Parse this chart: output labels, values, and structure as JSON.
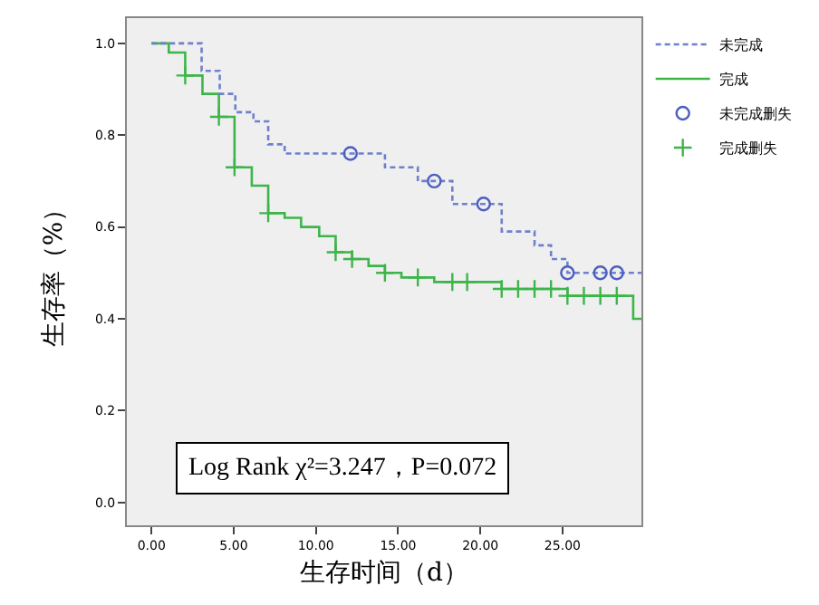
{
  "chart_data": {
    "type": "step",
    "xlabel": "生存时间（d）",
    "ylabel": "生存率（%）",
    "xlim": [
      -1.5,
      29.8
    ],
    "ylim": [
      -0.05,
      1.055
    ],
    "xticks": [
      {
        "value": 0,
        "label": "0.00"
      },
      {
        "value": 5,
        "label": "5.00"
      },
      {
        "value": 10,
        "label": "10.00"
      },
      {
        "value": 15,
        "label": "15.00"
      },
      {
        "value": 20,
        "label": "20.00"
      },
      {
        "value": 25,
        "label": "25.00"
      }
    ],
    "yticks": [
      {
        "value": 0,
        "label": "0.0"
      },
      {
        "value": 0.2,
        "label": "0.2"
      },
      {
        "value": 0.4,
        "label": "0.4"
      },
      {
        "value": 0.6,
        "label": "0.6"
      },
      {
        "value": 0.8,
        "label": "0.8"
      },
      {
        "value": 1,
        "label": "1.0"
      }
    ],
    "grid": false,
    "legend": "top right",
    "annotations": [
      "Log Rank χ²=3.247，P=0.072"
    ],
    "series": [
      {
        "name": "未完成",
        "type": "step",
        "color": "#6f80cc",
        "line_style": "dashed",
        "x": [
          0,
          3.05,
          4.15,
          5.1,
          6.2,
          7.1,
          8.1,
          14.2,
          16.2,
          18.3,
          21.3,
          23.3,
          24.3,
          25.3,
          29.8
        ],
        "values": [
          1,
          0.94,
          0.89,
          0.85,
          0.83,
          0.78,
          0.76,
          0.73,
          0.7,
          0.65,
          0.59,
          0.56,
          0.53,
          0.5,
          0.5
        ]
      },
      {
        "name": "完成",
        "type": "step",
        "color": "#3db54a",
        "line_style": "solid",
        "x": [
          0,
          1.05,
          2.05,
          3.1,
          4.1,
          5.05,
          6.1,
          7.1,
          8.1,
          9.1,
          10.2,
          11.2,
          12.2,
          13.2,
          14.2,
          15.2,
          17.2,
          21.3,
          25.3,
          29.3,
          29.8
        ],
        "values": [
          1,
          0.98,
          0.93,
          0.89,
          0.84,
          0.73,
          0.69,
          0.63,
          0.62,
          0.6,
          0.58,
          0.545,
          0.53,
          0.515,
          0.5,
          0.49,
          0.48,
          0.465,
          0.45,
          0.4,
          0.4
        ]
      },
      {
        "name": "未完成删失",
        "type": "scatter",
        "color": "#4a5fc0",
        "marker": "circle",
        "x": [
          12.1,
          17.2,
          20.2,
          25.3,
          27.3,
          28.3
        ],
        "values": [
          0.76,
          0.7,
          0.65,
          0.5,
          0.5,
          0.5
        ]
      },
      {
        "name": "完成删失",
        "type": "scatter",
        "color": "#3db54a",
        "marker": "cross",
        "x": [
          2.05,
          4.1,
          5.05,
          7.1,
          11.2,
          12.2,
          14.2,
          16.2,
          18.3,
          19.2,
          21.3,
          22.3,
          23.3,
          24.3,
          25.3,
          26.3,
          27.3,
          28.3
        ],
        "values": [
          0.93,
          0.84,
          0.73,
          0.63,
          0.545,
          0.53,
          0.5,
          0.49,
          0.48,
          0.48,
          0.465,
          0.465,
          0.465,
          0.465,
          0.45,
          0.45,
          0.45,
          0.45
        ]
      }
    ]
  }
}
